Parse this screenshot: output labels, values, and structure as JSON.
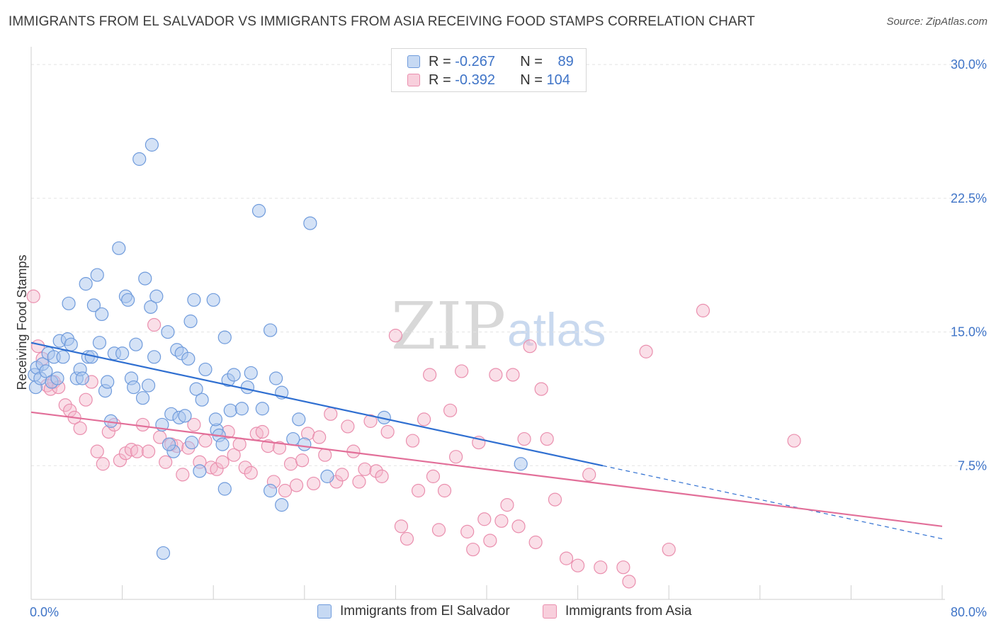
{
  "title": "IMMIGRANTS FROM EL SALVADOR VS IMMIGRANTS FROM ASIA RECEIVING FOOD STAMPS CORRELATION CHART",
  "source": "Source: ZipAtlas.com",
  "watermark": {
    "zip": "ZIP",
    "atlas": "atlas"
  },
  "colors": {
    "blue_fill": "#a9c6ee",
    "blue_stroke": "#6f9bdc",
    "blue_line": "#2f6fd1",
    "pink_fill": "#f5b8cc",
    "pink_stroke": "#ea8fae",
    "pink_line": "#e26f99",
    "grid": "#e3e3e3",
    "axis_text": "#3f74c7"
  },
  "legend": {
    "rows": [
      {
        "r_label": "R = ",
        "r_value": "-0.267",
        "n_label": "N = ",
        "n_value": "89"
      },
      {
        "r_label": "R = ",
        "r_value": "-0.392",
        "n_label": "N = ",
        "n_value": "104"
      }
    ]
  },
  "chart_data": {
    "type": "scatter",
    "title": "IMMIGRANTS FROM EL SALVADOR VS IMMIGRANTS FROM ASIA RECEIVING FOOD STAMPS CORRELATION CHART",
    "xlabel": "",
    "ylabel": "Receiving Food Stamps",
    "xlim": [
      0,
      80
    ],
    "ylim": [
      0,
      31
    ],
    "x_tick_labels": [
      "0.0%",
      "80.0%"
    ],
    "y_ticks": [
      7.5,
      15.0,
      22.5,
      30.0
    ],
    "y_tick_labels": [
      "7.5%",
      "15.0%",
      "22.5%",
      "30.0%"
    ],
    "grid": true,
    "legend_position": "top-center",
    "series": [
      {
        "name": "Immigrants from El Salvador",
        "color": "#a9c6ee",
        "trend": {
          "x0": 0,
          "y0": 14.4,
          "x1": 50.2,
          "y1": 7.5,
          "dashed_to_x": 80,
          "dashed_to_y": 3.4
        },
        "points": [
          [
            0.3,
            12.6
          ],
          [
            0.4,
            11.9
          ],
          [
            0.5,
            13.0
          ],
          [
            0.8,
            12.4
          ],
          [
            1.0,
            13.2
          ],
          [
            1.3,
            12.8
          ],
          [
            1.5,
            13.8
          ],
          [
            1.8,
            12.2
          ],
          [
            2.0,
            13.6
          ],
          [
            2.3,
            12.4
          ],
          [
            2.5,
            14.5
          ],
          [
            2.8,
            13.6
          ],
          [
            3.2,
            14.6
          ],
          [
            3.5,
            14.3
          ],
          [
            4.0,
            12.4
          ],
          [
            4.3,
            12.9
          ],
          [
            4.5,
            12.4
          ],
          [
            4.8,
            17.7
          ],
          [
            5.0,
            13.6
          ],
          [
            5.3,
            13.6
          ],
          [
            5.5,
            16.5
          ],
          [
            6.0,
            14.4
          ],
          [
            6.2,
            16.0
          ],
          [
            6.5,
            11.7
          ],
          [
            6.7,
            12.2
          ],
          [
            7.0,
            10.0
          ],
          [
            7.3,
            13.8
          ],
          [
            7.7,
            19.7
          ],
          [
            8.0,
            13.8
          ],
          [
            8.3,
            17.0
          ],
          [
            8.5,
            16.8
          ],
          [
            8.8,
            12.4
          ],
          [
            9.0,
            11.9
          ],
          [
            9.2,
            14.3
          ],
          [
            9.5,
            24.7
          ],
          [
            9.8,
            11.3
          ],
          [
            10.0,
            18.0
          ],
          [
            10.3,
            12.0
          ],
          [
            10.5,
            16.4
          ],
          [
            10.8,
            13.6
          ],
          [
            11.0,
            17.0
          ],
          [
            11.5,
            9.8
          ],
          [
            12.0,
            15.0
          ],
          [
            12.3,
            10.4
          ],
          [
            12.5,
            8.3
          ],
          [
            12.8,
            14.0
          ],
          [
            13.0,
            10.2
          ],
          [
            13.2,
            13.8
          ],
          [
            13.5,
            10.3
          ],
          [
            13.8,
            13.5
          ],
          [
            14.0,
            15.6
          ],
          [
            14.3,
            16.8
          ],
          [
            14.5,
            11.8
          ],
          [
            14.8,
            7.2
          ],
          [
            15.0,
            11.2
          ],
          [
            15.3,
            12.9
          ],
          [
            16.0,
            16.8
          ],
          [
            16.3,
            9.5
          ],
          [
            16.5,
            9.2
          ],
          [
            16.8,
            8.7
          ],
          [
            17.0,
            14.7
          ],
          [
            17.3,
            12.3
          ],
          [
            17.5,
            10.6
          ],
          [
            17.8,
            12.6
          ],
          [
            18.5,
            10.7
          ],
          [
            19.0,
            11.9
          ],
          [
            19.3,
            12.7
          ],
          [
            20.0,
            21.8
          ],
          [
            20.3,
            10.7
          ],
          [
            21.0,
            15.1
          ],
          [
            21.5,
            12.4
          ],
          [
            22.0,
            11.6
          ],
          [
            23.0,
            9.0
          ],
          [
            23.5,
            10.1
          ],
          [
            24.5,
            21.1
          ],
          [
            26.0,
            6.9
          ],
          [
            10.6,
            25.5
          ],
          [
            11.6,
            2.6
          ],
          [
            12.1,
            8.7
          ],
          [
            14.1,
            8.8
          ],
          [
            21.0,
            6.1
          ],
          [
            22.0,
            5.3
          ],
          [
            24.0,
            8.7
          ],
          [
            31.0,
            10.2
          ],
          [
            43.0,
            7.6
          ],
          [
            17.0,
            6.2
          ],
          [
            5.8,
            18.2
          ],
          [
            3.3,
            16.6
          ],
          [
            16.2,
            10.1
          ]
        ]
      },
      {
        "name": "Immigrants from Asia",
        "color": "#f5b8cc",
        "trend": {
          "x0": 0,
          "y0": 10.5,
          "x1": 80,
          "y1": 4.1
        },
        "points": [
          [
            0.2,
            17.0
          ],
          [
            0.6,
            14.2
          ],
          [
            1.0,
            13.5
          ],
          [
            1.4,
            12.0
          ],
          [
            1.7,
            11.8
          ],
          [
            2.0,
            12.2
          ],
          [
            2.4,
            11.9
          ],
          [
            3.0,
            10.9
          ],
          [
            3.4,
            10.6
          ],
          [
            3.8,
            10.2
          ],
          [
            4.3,
            9.6
          ],
          [
            4.8,
            11.2
          ],
          [
            5.3,
            12.2
          ],
          [
            5.8,
            8.3
          ],
          [
            6.3,
            7.6
          ],
          [
            6.8,
            9.4
          ],
          [
            7.3,
            9.8
          ],
          [
            7.8,
            7.8
          ],
          [
            8.3,
            8.2
          ],
          [
            8.8,
            8.4
          ],
          [
            9.3,
            8.3
          ],
          [
            9.8,
            9.8
          ],
          [
            10.3,
            8.3
          ],
          [
            10.8,
            15.4
          ],
          [
            11.3,
            9.1
          ],
          [
            11.8,
            7.7
          ],
          [
            12.3,
            8.7
          ],
          [
            12.8,
            8.6
          ],
          [
            13.3,
            7.0
          ],
          [
            13.8,
            8.5
          ],
          [
            14.3,
            9.8
          ],
          [
            14.8,
            7.7
          ],
          [
            15.3,
            8.9
          ],
          [
            15.8,
            7.4
          ],
          [
            16.3,
            7.3
          ],
          [
            16.8,
            7.7
          ],
          [
            17.3,
            9.4
          ],
          [
            17.8,
            8.1
          ],
          [
            18.3,
            8.7
          ],
          [
            18.8,
            7.4
          ],
          [
            19.3,
            7.1
          ],
          [
            19.8,
            9.3
          ],
          [
            20.3,
            9.4
          ],
          [
            20.8,
            8.6
          ],
          [
            21.3,
            6.6
          ],
          [
            21.8,
            8.5
          ],
          [
            22.3,
            6.1
          ],
          [
            22.8,
            7.6
          ],
          [
            23.3,
            6.4
          ],
          [
            23.8,
            7.8
          ],
          [
            24.3,
            9.3
          ],
          [
            24.8,
            6.5
          ],
          [
            25.3,
            9.1
          ],
          [
            25.8,
            8.1
          ],
          [
            26.3,
            10.4
          ],
          [
            26.8,
            6.6
          ],
          [
            27.3,
            7.0
          ],
          [
            27.8,
            9.7
          ],
          [
            28.3,
            8.3
          ],
          [
            28.8,
            6.6
          ],
          [
            29.3,
            7.3
          ],
          [
            29.8,
            10.0
          ],
          [
            30.3,
            7.2
          ],
          [
            30.8,
            6.9
          ],
          [
            31.3,
            9.4
          ],
          [
            32.0,
            14.8
          ],
          [
            32.5,
            4.1
          ],
          [
            33.0,
            3.4
          ],
          [
            33.5,
            8.9
          ],
          [
            34.0,
            6.1
          ],
          [
            34.5,
            10.1
          ],
          [
            35.0,
            12.6
          ],
          [
            35.3,
            6.9
          ],
          [
            35.8,
            3.9
          ],
          [
            36.3,
            6.1
          ],
          [
            36.8,
            10.6
          ],
          [
            37.3,
            8.0
          ],
          [
            37.8,
            12.8
          ],
          [
            38.3,
            3.8
          ],
          [
            38.8,
            2.8
          ],
          [
            39.3,
            8.8
          ],
          [
            39.8,
            4.5
          ],
          [
            40.3,
            3.3
          ],
          [
            40.8,
            12.6
          ],
          [
            41.3,
            4.4
          ],
          [
            41.8,
            5.3
          ],
          [
            42.3,
            12.6
          ],
          [
            42.8,
            4.1
          ],
          [
            43.3,
            9.0
          ],
          [
            43.8,
            14.2
          ],
          [
            44.3,
            3.2
          ],
          [
            44.8,
            11.8
          ],
          [
            45.3,
            9.0
          ],
          [
            46.0,
            5.6
          ],
          [
            47.0,
            2.3
          ],
          [
            48.0,
            1.9
          ],
          [
            49.0,
            7.0
          ],
          [
            50.0,
            1.8
          ],
          [
            52.0,
            1.8
          ],
          [
            52.5,
            1.0
          ],
          [
            54.0,
            13.9
          ],
          [
            56.0,
            2.8
          ],
          [
            59.0,
            16.2
          ],
          [
            67.0,
            8.9
          ]
        ]
      }
    ]
  },
  "bottom_legend": [
    {
      "label": "Immigrants from El Salvador"
    },
    {
      "label": "Immigrants from Asia"
    }
  ]
}
